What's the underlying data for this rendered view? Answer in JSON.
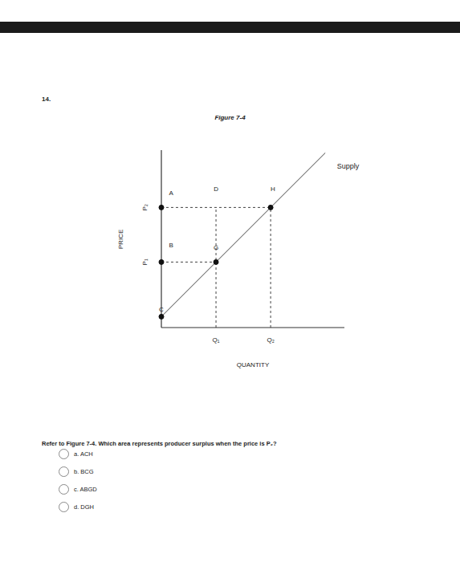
{
  "question_number": "14.",
  "chart_data": {
    "type": "line",
    "title": "Figure 7-4",
    "x_label": "QUANTITY",
    "y_label": "PRICE",
    "xlim": [
      0,
      33.5
    ],
    "ylim": [
      0,
      32.5
    ],
    "xticks": [
      {
        "value": 10,
        "label": "Q₁"
      },
      {
        "value": 20,
        "label": "Q₂"
      }
    ],
    "yticks": [
      {
        "value": 12,
        "label": "P₁"
      },
      {
        "value": 22,
        "label": "P₂"
      }
    ],
    "series": [
      {
        "name": "Supply",
        "color": "#404040",
        "x": [
          0,
          30
        ],
        "values": [
          2,
          32
        ]
      }
    ],
    "annotations": [
      {
        "text": "A",
        "x": 1.8,
        "y": 24.7
      },
      {
        "text": "B",
        "x": 1.8,
        "y": 15.1
      },
      {
        "text": "C",
        "x": 0,
        "y": 3.4
      },
      {
        "text": "D",
        "x": 10,
        "y": 25.4
      },
      {
        "text": "G",
        "x": 10,
        "y": 14.7
      },
      {
        "text": "H",
        "x": 20.4,
        "y": 25.4
      }
    ]
  },
  "question": "Refer to Figure 7-4. Which area represents producer surplus when the price is P₂?",
  "options": [
    "a. ACH",
    "b. BCG",
    "c. ABGD",
    "d. DGH"
  ]
}
